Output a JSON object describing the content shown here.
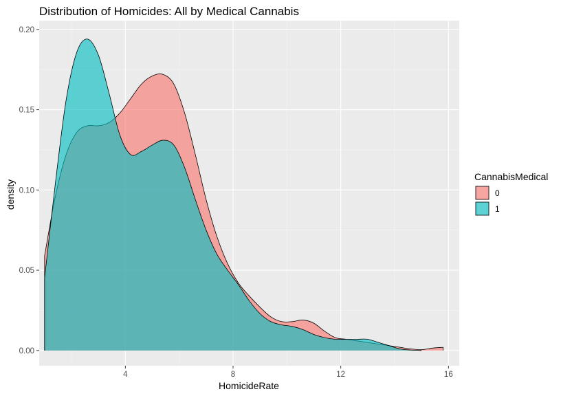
{
  "chart_data": {
    "type": "area",
    "title": "Distribution of Homicides: All by Medical Cannabis",
    "xlabel": "HomicideRate",
    "ylabel": "density",
    "xlim": [
      0.8,
      16.4
    ],
    "ylim": [
      -0.0095,
      0.2055
    ],
    "x_ticks": [
      4,
      8,
      12,
      16
    ],
    "x_tick_labels": [
      "4",
      "8",
      "12",
      "16"
    ],
    "y_ticks": [
      0,
      0.05,
      0.1,
      0.15,
      0.2
    ],
    "y_tick_labels": [
      "0.00",
      "0.05",
      "0.10",
      "0.15",
      "0.20"
    ],
    "grid": true,
    "background": "#ebebeb",
    "legend": {
      "title": "CannabisMedical",
      "position": "right",
      "entries": [
        "0",
        "1"
      ]
    },
    "series": [
      {
        "label": "0",
        "color": "#F8766D",
        "points": [
          [
            1.0,
            0.059
          ],
          [
            1.4,
            0.096
          ],
          [
            1.8,
            0.122
          ],
          [
            2.2,
            0.136
          ],
          [
            2.6,
            0.14
          ],
          [
            3.0,
            0.14
          ],
          [
            3.4,
            0.142
          ],
          [
            3.8,
            0.148
          ],
          [
            4.2,
            0.157
          ],
          [
            4.6,
            0.166
          ],
          [
            5.0,
            0.171
          ],
          [
            5.4,
            0.172
          ],
          [
            5.8,
            0.166
          ],
          [
            6.2,
            0.148
          ],
          [
            6.6,
            0.122
          ],
          [
            7.0,
            0.094
          ],
          [
            7.4,
            0.071
          ],
          [
            7.8,
            0.054
          ],
          [
            8.2,
            0.042
          ],
          [
            8.6,
            0.034
          ],
          [
            9.0,
            0.027
          ],
          [
            9.4,
            0.021
          ],
          [
            9.8,
            0.018
          ],
          [
            10.2,
            0.018
          ],
          [
            10.6,
            0.019
          ],
          [
            11.0,
            0.017
          ],
          [
            11.4,
            0.012
          ],
          [
            11.8,
            0.008
          ],
          [
            12.2,
            0.007
          ],
          [
            12.6,
            0.006
          ],
          [
            13.0,
            0.005
          ],
          [
            13.4,
            0.004
          ],
          [
            13.8,
            0.003
          ],
          [
            14.2,
            0.002
          ],
          [
            14.6,
            0.001
          ],
          [
            15.0,
            0.0005
          ],
          [
            15.4,
            0.0015
          ],
          [
            15.8,
            0.002
          ]
        ]
      },
      {
        "label": "1",
        "color": "#00BFC4",
        "points": [
          [
            1.0,
            0.045
          ],
          [
            1.4,
            0.104
          ],
          [
            1.8,
            0.156
          ],
          [
            2.2,
            0.186
          ],
          [
            2.6,
            0.194
          ],
          [
            3.0,
            0.184
          ],
          [
            3.4,
            0.16
          ],
          [
            3.8,
            0.134
          ],
          [
            4.2,
            0.122
          ],
          [
            4.6,
            0.124
          ],
          [
            5.0,
            0.128
          ],
          [
            5.4,
            0.131
          ],
          [
            5.8,
            0.128
          ],
          [
            6.2,
            0.114
          ],
          [
            6.6,
            0.094
          ],
          [
            7.0,
            0.075
          ],
          [
            7.4,
            0.06
          ],
          [
            7.8,
            0.05
          ],
          [
            8.2,
            0.041
          ],
          [
            8.6,
            0.031
          ],
          [
            9.0,
            0.023
          ],
          [
            9.4,
            0.018
          ],
          [
            9.8,
            0.016
          ],
          [
            10.2,
            0.015
          ],
          [
            10.6,
            0.013
          ],
          [
            11.0,
            0.01
          ],
          [
            11.4,
            0.008
          ],
          [
            11.8,
            0.007
          ],
          [
            12.2,
            0.007
          ],
          [
            12.6,
            0.007
          ],
          [
            13.0,
            0.007
          ],
          [
            13.4,
            0.005
          ],
          [
            13.8,
            0.003
          ],
          [
            14.2,
            0.001
          ],
          [
            14.6,
            0.0003
          ],
          [
            15.0,
            0.0
          ]
        ]
      }
    ]
  }
}
